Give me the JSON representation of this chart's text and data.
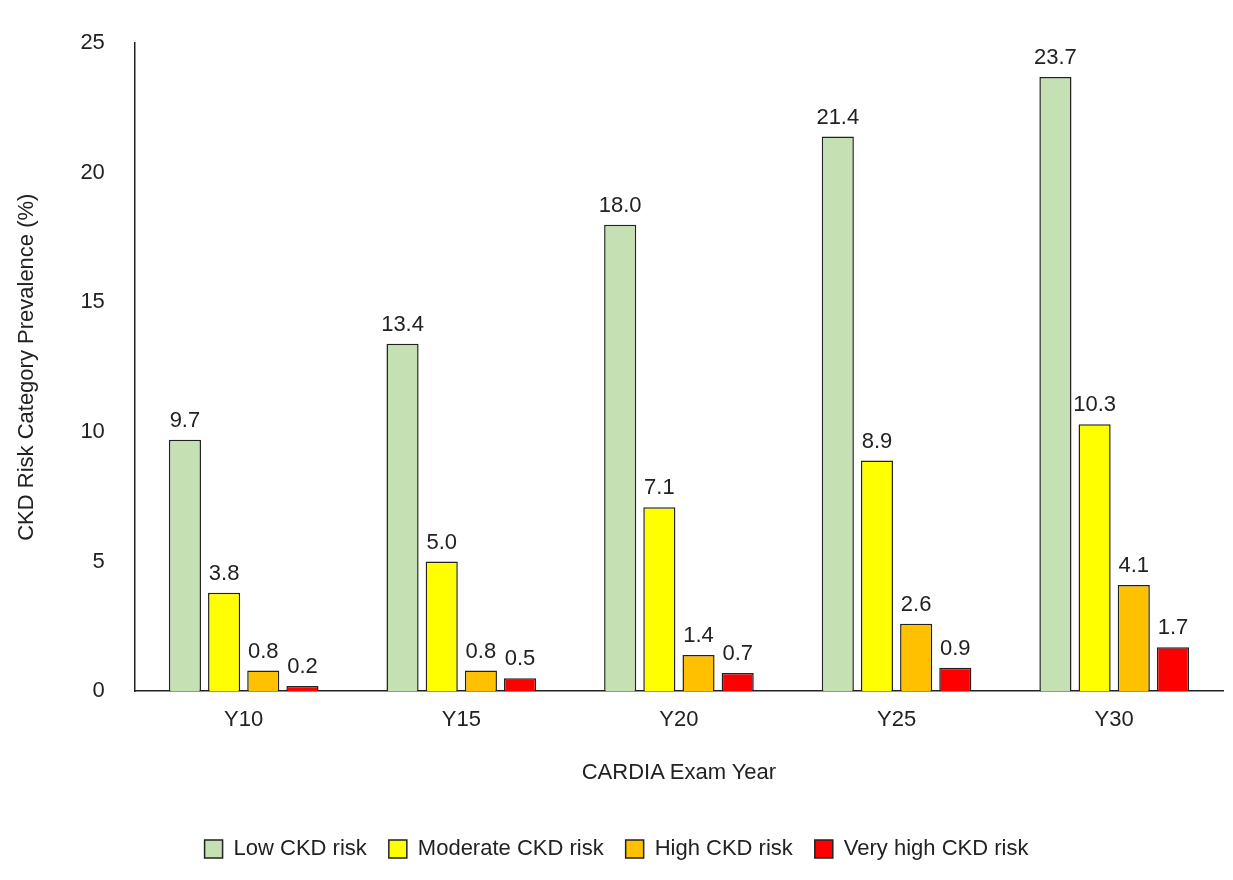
{
  "chart_data": {
    "type": "bar",
    "xlabel": "CARDIA Exam Year",
    "ylabel": "CKD Risk Category Prevalence (%)",
    "categories": [
      "Y10",
      "Y15",
      "Y20",
      "Y25",
      "Y30"
    ],
    "series": [
      {
        "name": "Low CKD risk",
        "color": "#c5e0b3",
        "values": [
          9.7,
          13.4,
          18.0,
          21.4,
          23.7
        ],
        "value_labels": [
          "9.7",
          "13.4",
          "18.0",
          "21.4",
          "23.7"
        ]
      },
      {
        "name": "Moderate CKD risk",
        "color": "#ffff00",
        "values": [
          3.8,
          5.0,
          7.1,
          8.9,
          10.3
        ],
        "value_labels": [
          "3.8",
          "5.0",
          "7.1",
          "8.9",
          "10.3"
        ]
      },
      {
        "name": "High CKD risk",
        "color": "#ffc000",
        "values": [
          0.8,
          0.8,
          1.4,
          2.6,
          4.1
        ],
        "value_labels": [
          "0.8",
          "0.8",
          "1.4",
          "2.6",
          "4.1"
        ]
      },
      {
        "name": "Very high CKD risk",
        "color": "#ff0000",
        "values": [
          0.2,
          0.5,
          0.7,
          0.9,
          1.7
        ],
        "value_labels": [
          "0.2",
          "0.5",
          "0.7",
          "0.9",
          "1.7"
        ]
      }
    ],
    "ylim": [
      0,
      25
    ],
    "yticks": [
      0,
      5,
      10,
      15,
      20,
      25
    ],
    "grid": false,
    "legend": "bottom"
  }
}
